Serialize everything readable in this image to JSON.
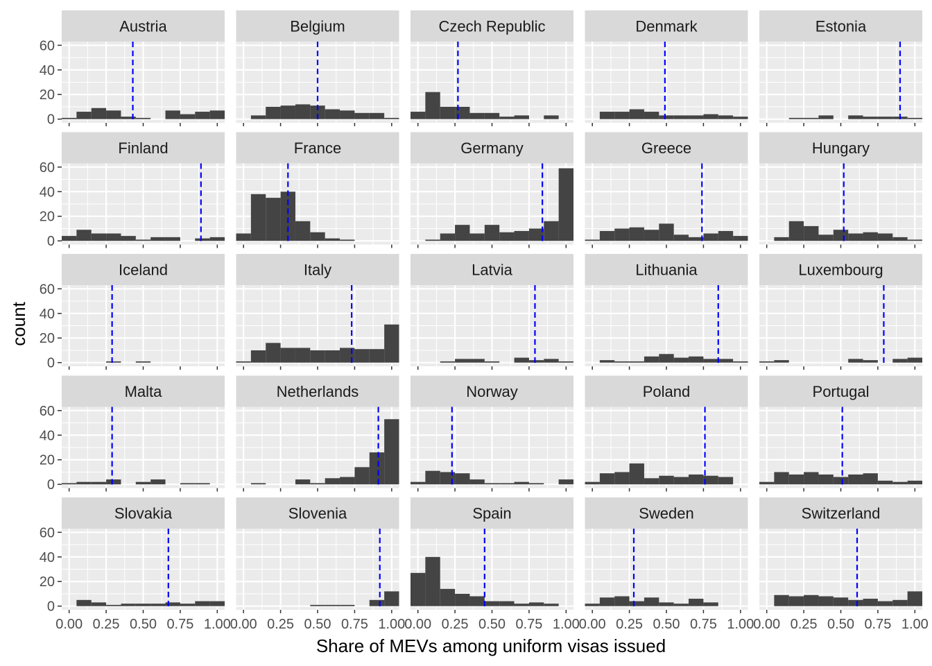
{
  "chart_data": {
    "type": "bar",
    "subtype": "faceted-histogram",
    "xlabel": "Share of MEVs among uniform visas issued",
    "ylabel": "count",
    "xlim": [
      -0.05,
      1.05
    ],
    "ylim": [
      -3,
      63
    ],
    "x_ticks": [
      0,
      0.25,
      0.5,
      0.75,
      1
    ],
    "x_tick_labels": [
      "0.00",
      "0.25",
      "0.50",
      "0.75",
      "1.00"
    ],
    "y_ticks": [
      0,
      20,
      40,
      60
    ],
    "y_tick_labels": [
      "0",
      "20",
      "40",
      "60"
    ],
    "bin_centers": [
      0,
      0.1,
      0.2,
      0.3,
      0.4,
      0.5,
      0.6,
      0.7,
      0.8,
      0.9,
      1.0
    ],
    "bin_width": 0.1,
    "grid": true,
    "reference_line": {
      "style": "dashed",
      "color": "#0000ff"
    },
    "colors": {
      "bar": "#444444",
      "panel_bg": "#ebebeb",
      "strip_bg": "#d9d9d9",
      "grid": "#ffffff",
      "ref_line": "#0000ff",
      "text": "#1a1a1a",
      "tick_text": "#4d4d4d"
    },
    "facets": [
      {
        "name": "Austria",
        "counts": [
          1,
          6,
          9,
          7,
          2,
          1,
          0,
          7,
          4,
          6,
          7
        ],
        "mean": 0.43
      },
      {
        "name": "Belgium",
        "counts": [
          0,
          3,
          10,
          11,
          12,
          11,
          8,
          7,
          5,
          5,
          1
        ],
        "mean": 0.5
      },
      {
        "name": "Czech Republic",
        "counts": [
          6,
          22,
          10,
          10,
          5,
          5,
          2,
          3,
          0,
          3,
          0
        ],
        "mean": 0.27
      },
      {
        "name": "Denmark",
        "counts": [
          0,
          6,
          6,
          8,
          6,
          3,
          3,
          3,
          4,
          3,
          2
        ],
        "mean": 0.49
      },
      {
        "name": "Estonia",
        "counts": [
          0,
          0,
          1,
          1,
          3,
          0,
          3,
          2,
          2,
          2,
          1
        ],
        "mean": 0.9
      },
      {
        "name": "Finland",
        "counts": [
          4,
          9,
          6,
          6,
          4,
          1,
          3,
          3,
          0,
          2,
          3
        ],
        "mean": 0.89
      },
      {
        "name": "France",
        "counts": [
          6,
          38,
          35,
          40,
          16,
          7,
          2,
          1,
          0,
          0,
          0
        ],
        "mean": 0.3
      },
      {
        "name": "Germany",
        "counts": [
          0,
          1,
          6,
          13,
          6,
          13,
          7,
          8,
          10,
          16,
          59
        ],
        "mean": 0.84
      },
      {
        "name": "Greece",
        "counts": [
          1,
          8,
          10,
          11,
          9,
          14,
          5,
          3,
          6,
          8,
          4
        ],
        "mean": 0.74
      },
      {
        "name": "Hungary",
        "counts": [
          0,
          3,
          16,
          12,
          5,
          9,
          6,
          7,
          6,
          3,
          1
        ],
        "mean": 0.52
      },
      {
        "name": "Iceland",
        "counts": [
          0,
          0,
          0,
          1,
          0,
          1,
          0,
          0,
          0,
          0,
          0
        ],
        "mean": 0.29
      },
      {
        "name": "Italy",
        "counts": [
          1,
          10,
          16,
          12,
          12,
          10,
          10,
          12,
          11,
          11,
          31
        ],
        "mean": 0.73
      },
      {
        "name": "Latvia",
        "counts": [
          0,
          0,
          1,
          3,
          3,
          1,
          0,
          4,
          2,
          3,
          1
        ],
        "mean": 0.79
      },
      {
        "name": "Lithuania",
        "counts": [
          0,
          2,
          1,
          1,
          5,
          7,
          4,
          5,
          3,
          3,
          1
        ],
        "mean": 0.85
      },
      {
        "name": "Luxembourg",
        "counts": [
          1,
          2,
          0,
          0,
          0,
          0,
          3,
          2,
          0,
          3,
          4
        ],
        "mean": 0.79
      },
      {
        "name": "Malta",
        "counts": [
          1,
          2,
          2,
          4,
          0,
          2,
          4,
          0,
          1,
          1,
          0
        ],
        "mean": 0.29
      },
      {
        "name": "Netherlands",
        "counts": [
          0,
          1,
          0,
          0,
          4,
          1,
          5,
          6,
          14,
          26,
          53
        ],
        "mean": 0.91
      },
      {
        "name": "Norway",
        "counts": [
          2,
          11,
          10,
          9,
          4,
          1,
          1,
          2,
          1,
          0,
          4
        ],
        "mean": 0.23
      },
      {
        "name": "Poland",
        "counts": [
          2,
          9,
          10,
          17,
          5,
          7,
          6,
          8,
          7,
          6,
          0
        ],
        "mean": 0.76
      },
      {
        "name": "Portugal",
        "counts": [
          2,
          10,
          8,
          10,
          8,
          6,
          8,
          9,
          3,
          2,
          3
        ],
        "mean": 0.51
      },
      {
        "name": "Slovakia",
        "counts": [
          0,
          5,
          3,
          1,
          2,
          2,
          2,
          3,
          2,
          4,
          4
        ],
        "mean": 0.67
      },
      {
        "name": "Slovenia",
        "counts": [
          0,
          0,
          0,
          0,
          0,
          1,
          1,
          1,
          0,
          5,
          12
        ],
        "mean": 0.92
      },
      {
        "name": "Spain",
        "counts": [
          27,
          40,
          14,
          10,
          8,
          4,
          4,
          2,
          3,
          2,
          0
        ],
        "mean": 0.45
      },
      {
        "name": "Sweden",
        "counts": [
          2,
          7,
          8,
          4,
          7,
          3,
          2,
          6,
          3,
          0,
          0
        ],
        "mean": 0.28
      },
      {
        "name": "Switzerland",
        "counts": [
          0,
          9,
          8,
          9,
          8,
          7,
          5,
          6,
          4,
          5,
          12
        ],
        "mean": 0.61
      }
    ]
  }
}
